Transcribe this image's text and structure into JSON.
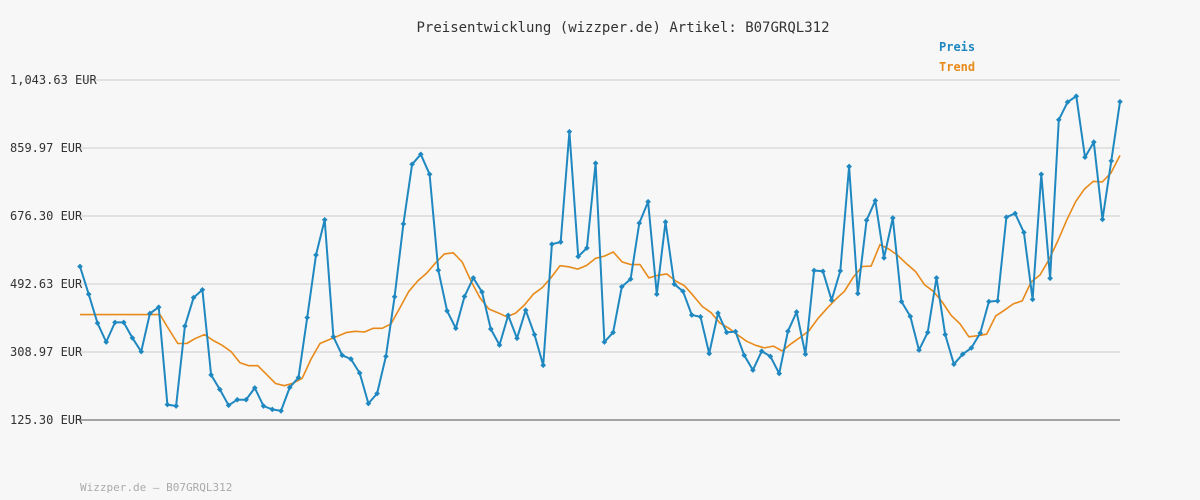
{
  "chart_data": {
    "type": "line",
    "title": "Preisentwicklung (wizzper.de) Artikel: B07GRQL312",
    "footer": "Wizzper.de – B07GRQL312",
    "ylim": [
      125.3,
      1043.63
    ],
    "y_ticks": [
      "1,043.63 EUR",
      "859.97 EUR",
      "676.30 EUR",
      "492.63 EUR",
      "308.97 EUR",
      "125.30 EUR"
    ],
    "grid": true,
    "legend_position": "top-right",
    "series": [
      {
        "name": "Preis",
        "color": "#1f88c0",
        "values": [
          540,
          465,
          387,
          336,
          389,
          389,
          347,
          310,
          413,
          430,
          167,
          163,
          379,
          456,
          477,
          247,
          208,
          165,
          180,
          180,
          212,
          163,
          154,
          150,
          213,
          240,
          402,
          571,
          666,
          350,
          300,
          290,
          252,
          170,
          197,
          297,
          458,
          655,
          816,
          843,
          789,
          530,
          420,
          373,
          459,
          509,
          471,
          371,
          328,
          408,
          346,
          422,
          356,
          273,
          600,
          606,
          904,
          567,
          590,
          819,
          336,
          362,
          485,
          506,
          657,
          715,
          465,
          660,
          492,
          473,
          409,
          404,
          305,
          414,
          362,
          364,
          300,
          260,
          311,
          297,
          251,
          365,
          417,
          303,
          529,
          527,
          449,
          528,
          810,
          467,
          665,
          718,
          563,
          671,
          445,
          405,
          314,
          362,
          509,
          356,
          276,
          303,
          320,
          360,
          445,
          447,
          673,
          683,
          632,
          451,
          789,
          508,
          936,
          984,
          1000,
          835,
          876,
          667,
          825,
          985
        ]
      },
      {
        "name": "Trend",
        "color": "#e88a1a",
        "values": [
          410,
          410,
          410,
          410,
          410,
          410,
          410,
          410,
          410,
          410,
          370,
          332,
          332,
          346,
          356,
          340,
          327,
          310,
          280,
          272,
          272,
          248,
          224,
          218,
          225,
          238,
          290,
          332,
          342,
          352,
          362,
          365,
          363,
          373,
          373,
          385,
          429,
          473,
          501,
          522,
          550,
          574,
          577,
          552,
          500,
          455,
          425,
          415,
          404,
          414,
          436,
          465,
          483,
          510,
          542,
          539,
          533,
          543,
          562,
          568,
          579,
          552,
          545,
          545,
          509,
          516,
          520,
          501,
          488,
          461,
          432,
          415,
          387,
          373,
          355,
          338,
          327,
          320,
          325,
          312,
          331,
          348,
          366,
          399,
          426,
          451,
          473,
          511,
          540,
          541,
          599,
          587,
          570,
          547,
          526,
          491,
          473,
          444,
          408,
          385,
          350,
          353,
          357,
          406,
          422,
          439,
          447,
          498,
          517,
          558,
          609,
          665,
          715,
          749,
          770,
          768,
          793,
          840
        ]
      }
    ]
  }
}
